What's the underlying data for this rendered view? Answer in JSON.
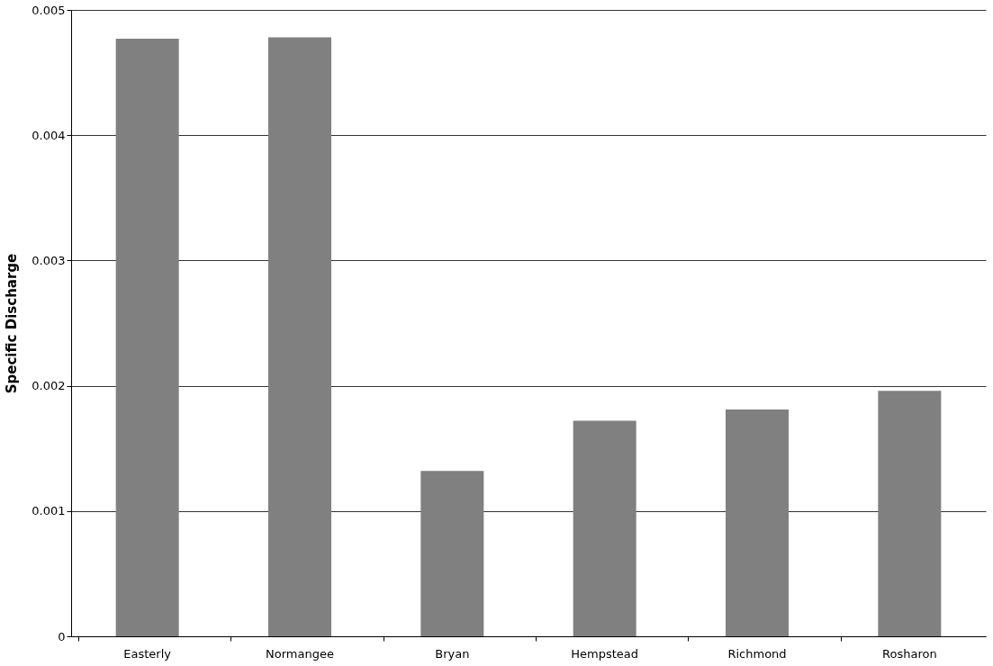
{
  "chart_data": {
    "type": "bar",
    "ylabel": "Specific Discharge",
    "categories": [
      "Easterly",
      "Normangee",
      "Bryan",
      "Hempstead",
      "Richmond",
      "Rosharon"
    ],
    "values": [
      0.00477,
      0.00478,
      0.00132,
      0.00172,
      0.00181,
      0.00196
    ],
    "color": "#808080",
    "ylim": [
      0,
      0.005
    ],
    "yticks": [
      0,
      0.001,
      0.002,
      0.003,
      0.004,
      0.005
    ],
    "grid": "y"
  }
}
